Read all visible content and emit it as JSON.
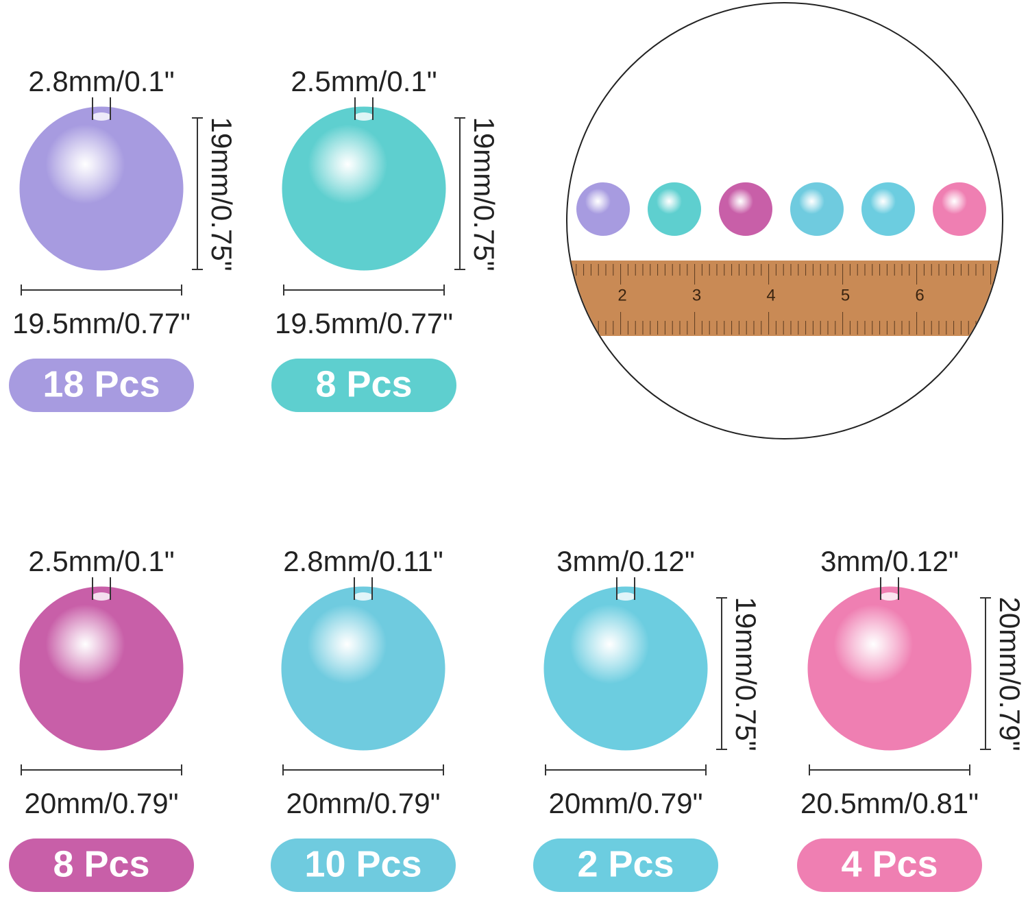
{
  "items": [
    {
      "hole": "2.8mm/0.1\"",
      "height": "19mm/0.75\"",
      "width": "19.5mm/0.77\"",
      "count": "18 Pcs",
      "color": "#a79be0"
    },
    {
      "hole": "2.5mm/0.1\"",
      "height": "19mm/0.75\"",
      "width": "19.5mm/0.77\"",
      "count": "8 Pcs",
      "color": "#5ecfcf"
    },
    {
      "hole": "2.5mm/0.1\"",
      "width": "20mm/0.79\"",
      "count": "8 Pcs",
      "color": "#c85fa8"
    },
    {
      "hole": "2.8mm/0.11\"",
      "width": "20mm/0.79\"",
      "count": "10 Pcs",
      "color": "#6fcbdf"
    },
    {
      "hole": "3mm/0.12\"",
      "height": "19mm/0.75\"",
      "width": "20mm/0.79\"",
      "count": "2 Pcs",
      "color": "#6ccde0"
    },
    {
      "hole": "3mm/0.12\"",
      "height": "20mm/0.79\"",
      "width": "20.5mm/0.81\"",
      "count": "4 Pcs",
      "color": "#ef7fb2"
    }
  ],
  "ruler": {
    "numbers": [
      2,
      3,
      4,
      5,
      6
    ]
  }
}
